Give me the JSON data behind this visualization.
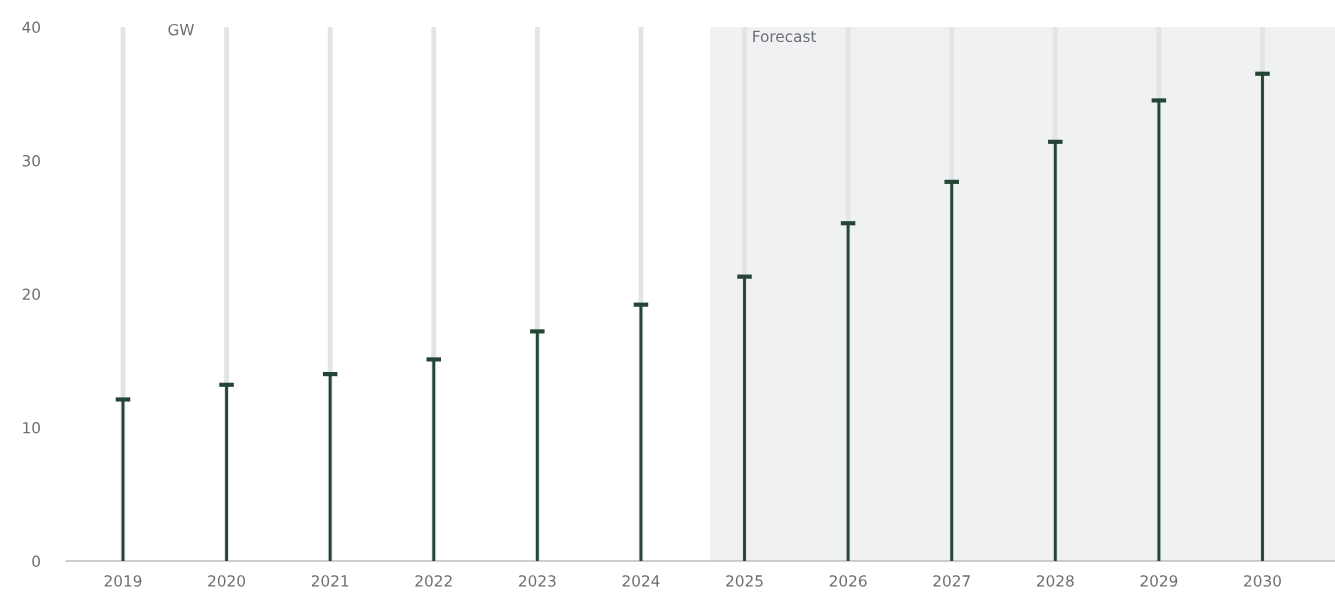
{
  "chart_data": {
    "type": "bar",
    "ylabel": "GW",
    "x": [
      2019,
      2020,
      2021,
      2022,
      2023,
      2024,
      2025,
      2026,
      2027,
      2028,
      2029,
      2030
    ],
    "series": [
      {
        "color": "#254634",
        "values": [
          12.1,
          13.2,
          14.0,
          15.1,
          17.2,
          19.2,
          21.3,
          25.3,
          28.4,
          31.4,
          34.5,
          36.5
        ]
      }
    ],
    "xlim": [
      2018.45,
      2030.7
    ],
    "xticks": [
      2019,
      2020,
      2021,
      2022,
      2023,
      2024,
      2025,
      2026,
      2027,
      2028,
      2029,
      2030
    ],
    "ylim": [
      0,
      40
    ],
    "yticks": [
      0,
      10,
      20,
      30,
      40
    ],
    "bands": [
      {
        "axis": "x",
        "from": 2024.67,
        "to": 2030.7,
        "label": "Forecast",
        "color": "#f0f1f3"
      }
    ],
    "grid": "x",
    "legend": false
  }
}
